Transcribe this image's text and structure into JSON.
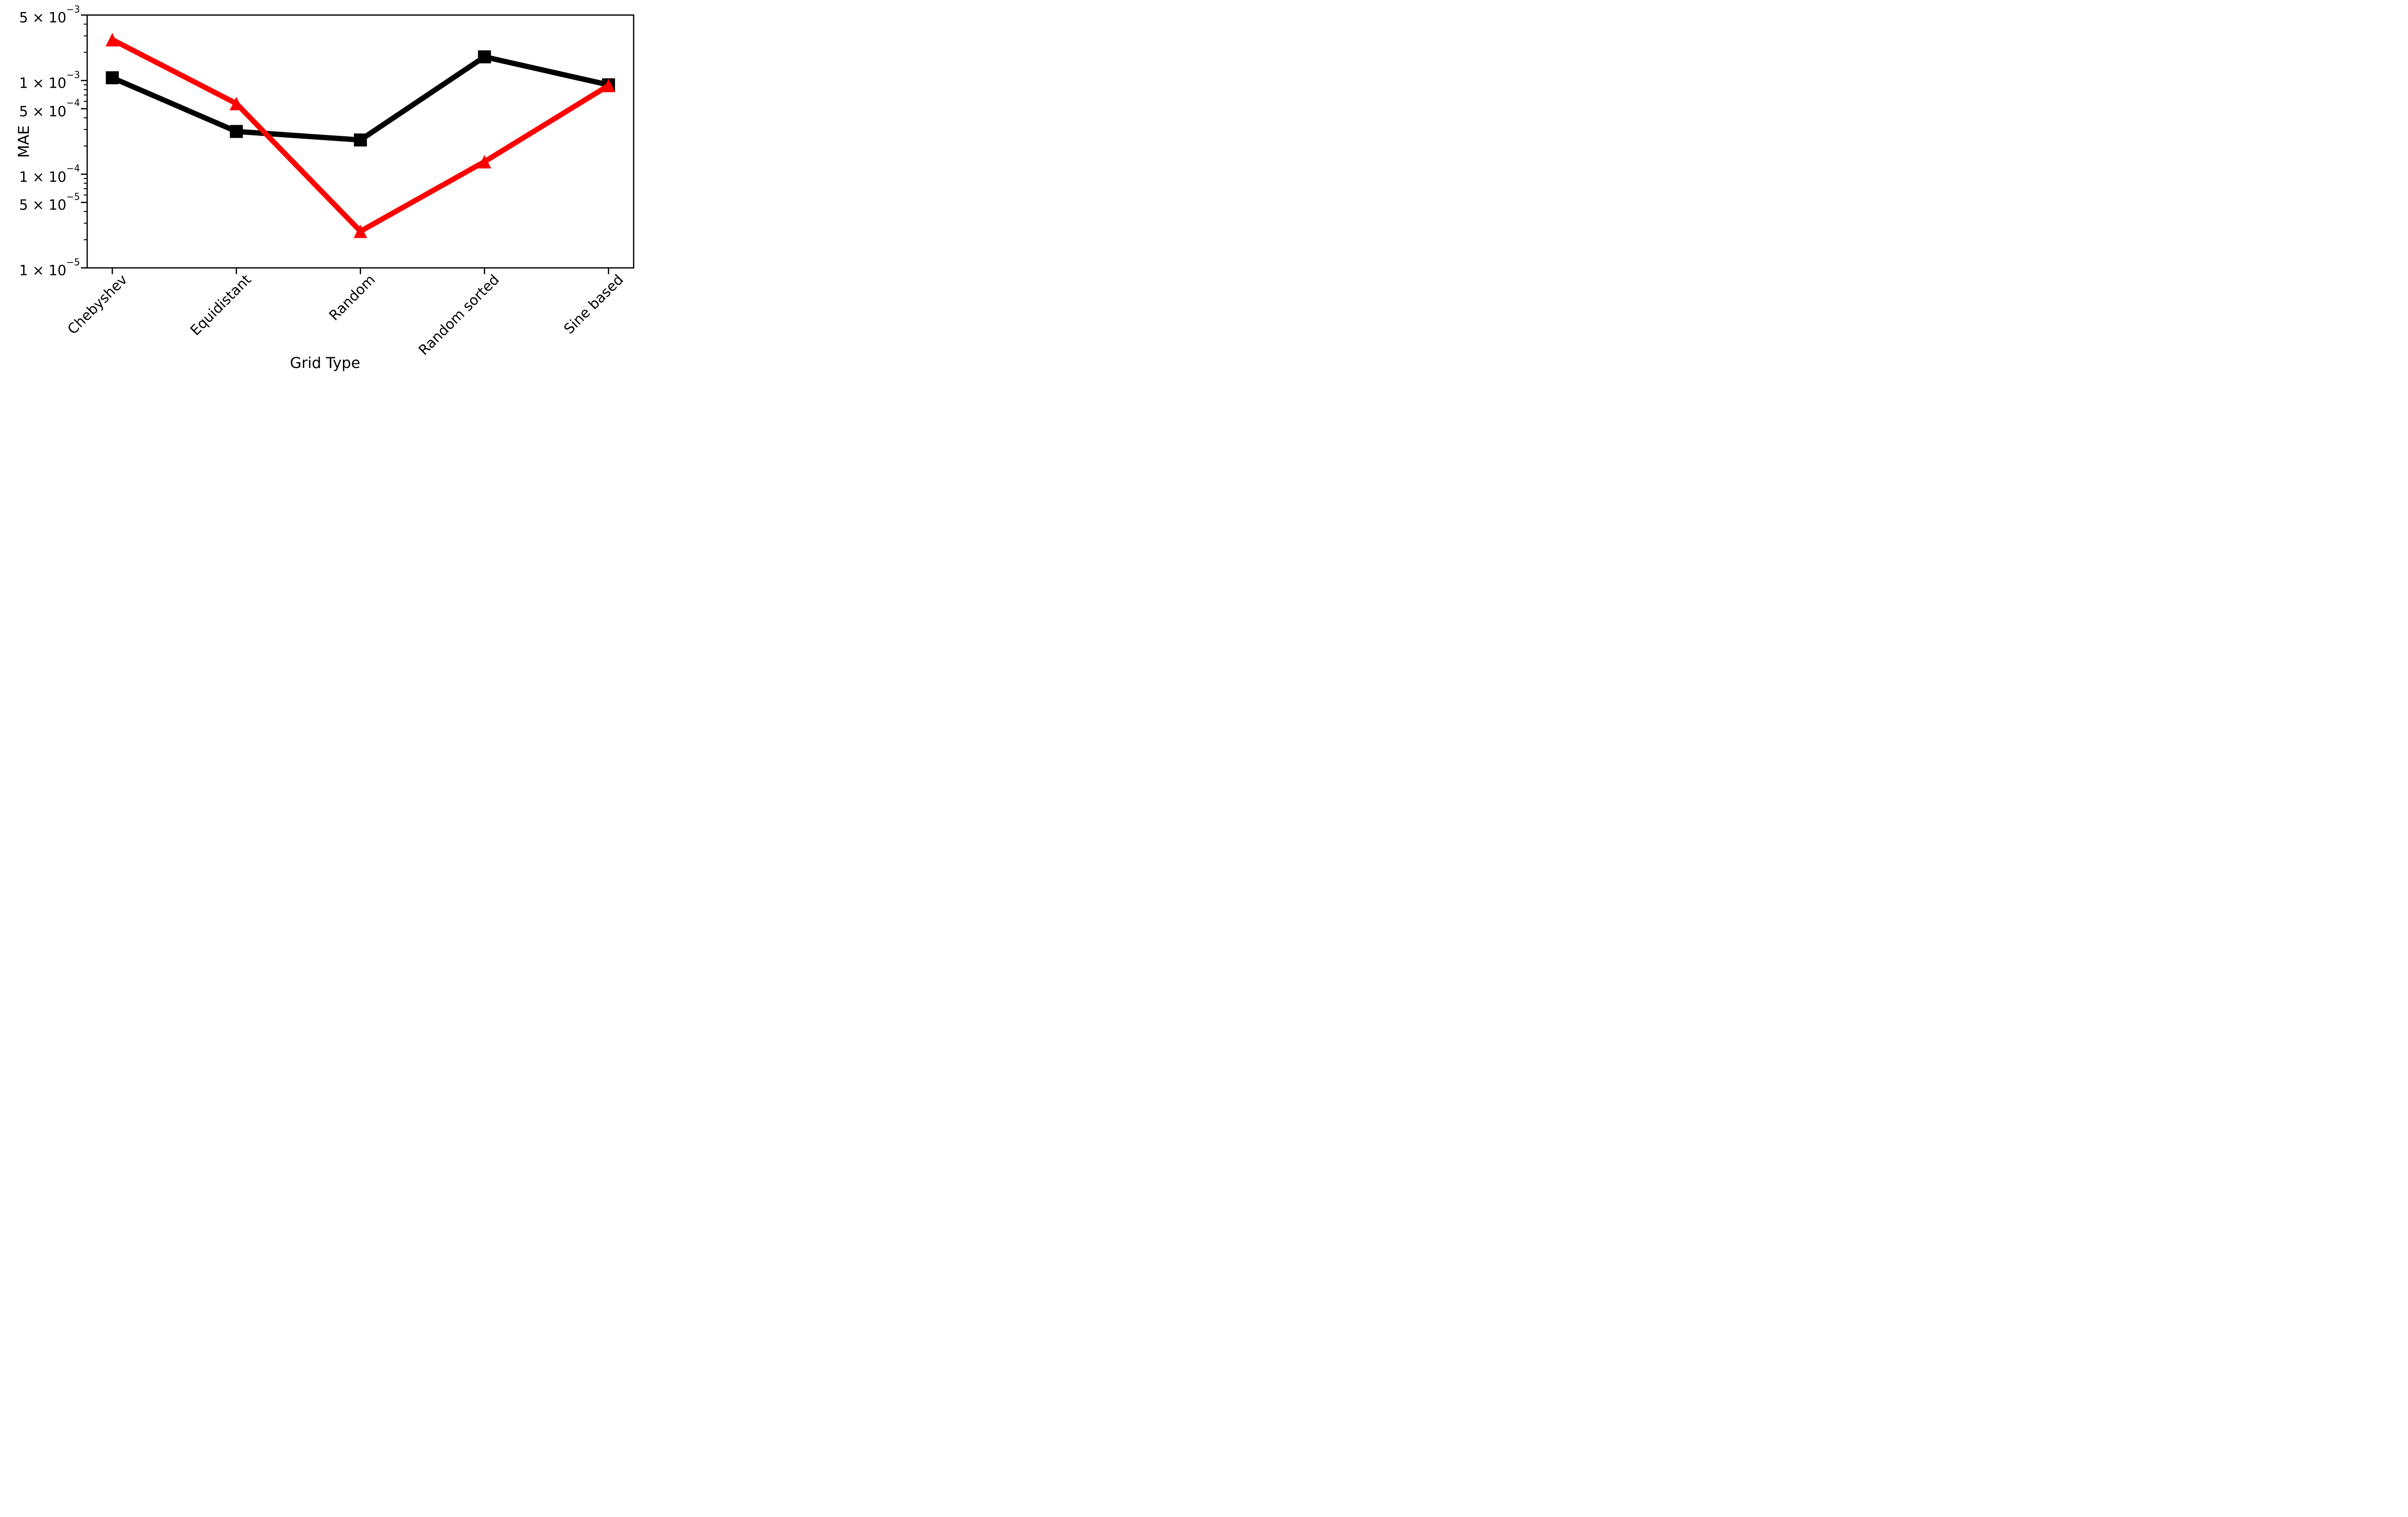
{
  "figure": {
    "background": "#ffffff",
    "axis_color": "#000000"
  },
  "chart_data": {
    "type": "line",
    "title": "",
    "xlabel": "Grid Type",
    "ylabel": "MAE",
    "yscale": "log",
    "ylim": [
      1e-05,
      0.005
    ],
    "grid": false,
    "legend": "none",
    "categories": [
      "Chebyshev",
      "Equidistant",
      "Random",
      "Random sorted",
      "Sine based"
    ],
    "series": [
      {
        "name": "black squares",
        "color": "#000000",
        "marker": "square",
        "values": [
          0.00107,
          0.000286,
          0.000232,
          0.00179,
          0.0009
        ]
      },
      {
        "name": "red triangles",
        "color": "#ff0000",
        "marker": "triangle-up",
        "values": [
          0.00273,
          0.000568,
          2.46e-05,
          0.000136,
          0.000885
        ]
      }
    ],
    "y_major_ticks": [
      {
        "value": 0.005,
        "base": "5 × 10",
        "exp": "−3"
      },
      {
        "value": 0.001,
        "base": "1 × 10",
        "exp": "−3"
      },
      {
        "value": 0.0005,
        "base": "5 × 10",
        "exp": "−4"
      },
      {
        "value": 0.0001,
        "base": "1 × 10",
        "exp": "−4"
      },
      {
        "value": 5e-05,
        "base": "5 × 10",
        "exp": "−5"
      },
      {
        "value": 1e-05,
        "base": "1 × 10",
        "exp": "−5"
      }
    ]
  }
}
